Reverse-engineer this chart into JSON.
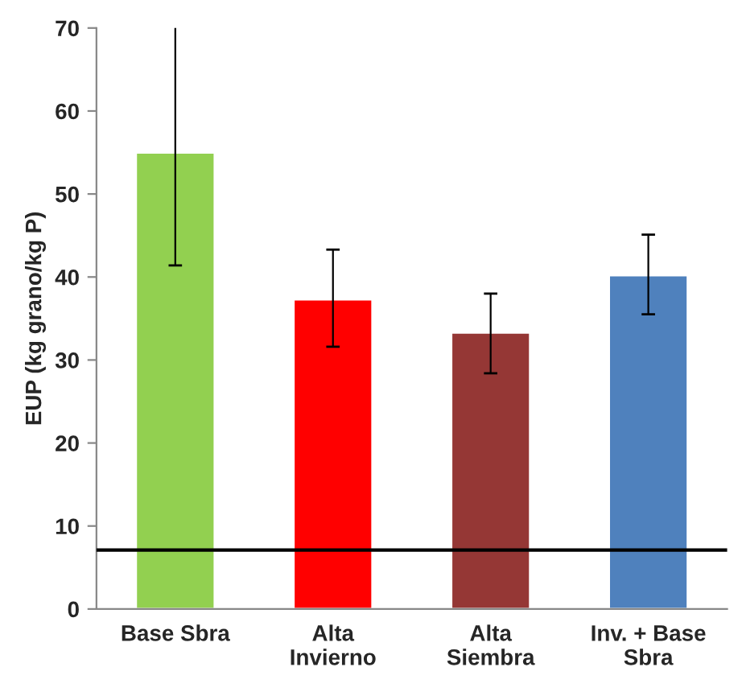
{
  "chart_data": {
    "type": "bar",
    "ylabel": "EUP (kg grano/kg P)",
    "categories": [
      "Base Sbra",
      "Alta\nInvierno",
      "Alta\nSiembra",
      "Inv. + Base\nSbra"
    ],
    "values": [
      55,
      37.3,
      33.3,
      40.2
    ],
    "colors": [
      "#92d050",
      "#ff0000",
      "#953735",
      "#4f81bd"
    ],
    "errors": [
      [
        41.4,
        70.6
      ],
      [
        31.6,
        43.3
      ],
      [
        28.4,
        38.0
      ],
      [
        35.5,
        45.1
      ]
    ],
    "ylim": [
      0,
      70
    ],
    "yticks": [
      0,
      10,
      20,
      30,
      40,
      50,
      60,
      70
    ],
    "ref_lines": [
      {
        "axis": "y",
        "value": 7.1,
        "color": "#000000"
      }
    ],
    "grid": false,
    "legend": false
  }
}
